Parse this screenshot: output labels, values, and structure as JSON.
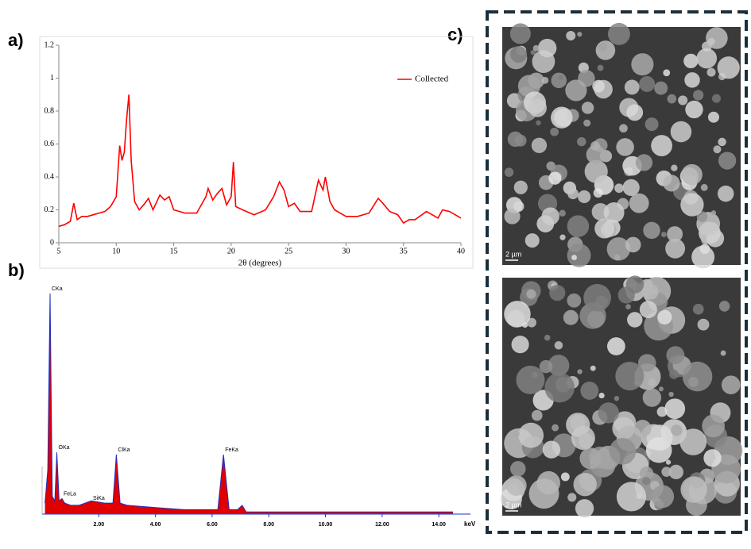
{
  "panels": {
    "a": "a)",
    "b": "b)",
    "c": "c)"
  },
  "chart_data": [
    {
      "type": "line",
      "xlabel": "2θ (degrees)",
      "legend": "upper right",
      "xlim": [
        5,
        40
      ],
      "ylim": [
        0,
        1.2
      ],
      "xticks": [
        5,
        10,
        15,
        20,
        25,
        30,
        35,
        40
      ],
      "yticks": [
        0,
        0.2,
        0.4,
        0.6,
        0.8,
        1,
        1.2
      ],
      "x": [
        5,
        5.5,
        6,
        6.3,
        6.6,
        7,
        7.5,
        8,
        8.5,
        9,
        9.5,
        10,
        10.3,
        10.5,
        10.7,
        10.9,
        11.1,
        11.3,
        11.6,
        12,
        12.5,
        12.8,
        13.2,
        13.8,
        14.2,
        14.6,
        15,
        16,
        17,
        17.8,
        18,
        18.4,
        18.8,
        19.2,
        19.6,
        20,
        20.2,
        20.4,
        21,
        22,
        23,
        23.7,
        24.2,
        24.6,
        25,
        25.5,
        26,
        27,
        27.6,
        28,
        28.2,
        28.6,
        29,
        30,
        31,
        32,
        32.8,
        33.2,
        33.8,
        34.5,
        35,
        35.5,
        36,
        37,
        37.5,
        38,
        38.4,
        39,
        39.5,
        40
      ],
      "series": [
        {
          "name": "Collected",
          "color": "#ff0000",
          "values": [
            0.1,
            0.11,
            0.13,
            0.24,
            0.14,
            0.16,
            0.16,
            0.17,
            0.18,
            0.19,
            0.22,
            0.28,
            0.59,
            0.5,
            0.55,
            0.75,
            0.9,
            0.5,
            0.25,
            0.2,
            0.24,
            0.27,
            0.2,
            0.29,
            0.26,
            0.28,
            0.2,
            0.18,
            0.18,
            0.28,
            0.33,
            0.26,
            0.3,
            0.33,
            0.23,
            0.28,
            0.49,
            0.22,
            0.2,
            0.17,
            0.2,
            0.28,
            0.37,
            0.32,
            0.22,
            0.24,
            0.19,
            0.19,
            0.38,
            0.32,
            0.4,
            0.25,
            0.2,
            0.16,
            0.16,
            0.18,
            0.27,
            0.24,
            0.19,
            0.17,
            0.12,
            0.14,
            0.14,
            0.19,
            0.17,
            0.15,
            0.2,
            0.19,
            0.17,
            0.15
          ]
        }
      ]
    },
    {
      "type": "area",
      "xlim": [
        0,
        15
      ],
      "ylim": [
        0,
        100
      ],
      "xunit": "keV",
      "xticks": [
        {
          "value": 2,
          "label": "2.00"
        },
        {
          "value": 4,
          "label": "4.00"
        },
        {
          "value": 6,
          "label": "6.00"
        },
        {
          "value": 8,
          "label": "8.00"
        },
        {
          "value": 10,
          "label": "10.00"
        },
        {
          "value": 12,
          "label": "12.00"
        },
        {
          "value": 14,
          "label": "14.00"
        }
      ],
      "x": [
        0.1,
        0.2,
        0.28,
        0.36,
        0.45,
        0.52,
        0.6,
        0.7,
        0.8,
        1.0,
        1.3,
        1.74,
        2.2,
        2.5,
        2.62,
        2.75,
        3.0,
        4.0,
        5.0,
        6.2,
        6.4,
        6.6,
        6.9,
        7.06,
        7.2,
        8,
        10,
        12,
        14,
        14.5
      ],
      "values": [
        5,
        20,
        100,
        8,
        6,
        28,
        6,
        7,
        5,
        4,
        4,
        6,
        5,
        5,
        27,
        5,
        4,
        3,
        2,
        2,
        27,
        2,
        2,
        4,
        1,
        1,
        1,
        1,
        1,
        1
      ],
      "color": "#e00000",
      "outline": "#2030c0",
      "annotations": [
        {
          "text": "CKa",
          "x": 0.28,
          "y": 100
        },
        {
          "text": "OKa",
          "x": 0.52,
          "y": 28
        },
        {
          "text": "FeLa",
          "x": 0.7,
          "y": 7
        },
        {
          "text": "SiKa",
          "x": 1.74,
          "y": 5
        },
        {
          "text": "ClKa",
          "x": 2.62,
          "y": 27
        },
        {
          "text": "FeKa",
          "x": 6.4,
          "y": 27
        }
      ]
    }
  ],
  "images": [
    {
      "scale_label": "2 µm"
    },
    {
      "scale_label": "2 µm"
    }
  ]
}
